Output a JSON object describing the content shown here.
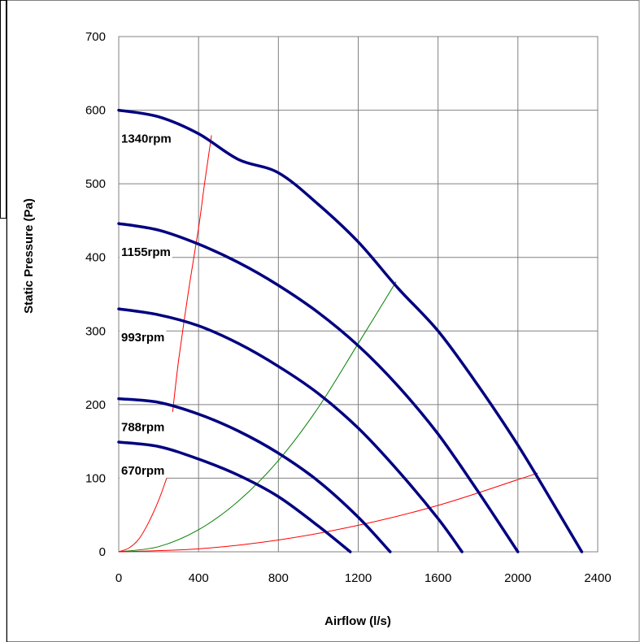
{
  "chart_data": {
    "type": "line",
    "title": "",
    "xlabel": "Airflow (l/s)",
    "ylabel": "Static Pressure (Pa)",
    "xlim": [
      0,
      2400
    ],
    "ylim": [
      0,
      700
    ],
    "xticks": [
      "0",
      "400",
      "800",
      "1200",
      "1600",
      "2000",
      "2400"
    ],
    "yticks": [
      "0",
      "100",
      "200",
      "300",
      "400",
      "500",
      "600",
      "700"
    ],
    "grid": true,
    "legend": "none",
    "colors": {
      "fan_curve": "#000080",
      "system_red": "#ff0000",
      "system_green": "#008000",
      "grid": "#808080"
    },
    "fan_curves": [
      {
        "name": "1340rpm",
        "x": [
          0,
          200,
          400,
          600,
          800,
          1000,
          1200,
          1400,
          1600,
          1800,
          2000,
          2200,
          2320
        ],
        "y": [
          600,
          591,
          568,
          533,
          515,
          472,
          421,
          358,
          300,
          226,
          145,
          55,
          0
        ]
      },
      {
        "name": "1155rpm",
        "x": [
          0,
          200,
          400,
          600,
          800,
          1000,
          1200,
          1400,
          1600,
          1800,
          2000
        ],
        "y": [
          446,
          437,
          418,
          393,
          362,
          325,
          280,
          225,
          160,
          82,
          0
        ]
      },
      {
        "name": "993rpm",
        "x": [
          0,
          200,
          400,
          600,
          800,
          1000,
          1200,
          1400,
          1600,
          1720
        ],
        "y": [
          330,
          322,
          307,
          283,
          252,
          215,
          168,
          110,
          45,
          0
        ]
      },
      {
        "name": "788rpm",
        "x": [
          0,
          200,
          400,
          600,
          800,
          1000,
          1200,
          1360
        ],
        "y": [
          208,
          203,
          187,
          164,
          134,
          96,
          47,
          0
        ]
      },
      {
        "name": "670rpm",
        "x": [
          0,
          200,
          400,
          600,
          800,
          1000,
          1160
        ],
        "y": [
          149,
          143,
          126,
          104,
          75,
          35,
          0
        ]
      }
    ],
    "system_curves": [
      {
        "color": "red",
        "x": [
          0,
          50,
          100,
          150,
          200,
          240
        ],
        "y": [
          0,
          5,
          17,
          40,
          70,
          100
        ]
      },
      {
        "color": "red",
        "x": [
          270,
          300,
          350,
          400,
          430,
          465
        ],
        "y": [
          190,
          260,
          355,
          440,
          500,
          566
        ]
      },
      {
        "color": "green",
        "x": [
          0,
          200,
          400,
          600,
          800,
          1000,
          1200,
          1390
        ],
        "y": [
          0,
          7,
          30,
          69,
          124,
          196,
          283,
          367
        ]
      },
      {
        "color": "red",
        "x": [
          0,
          400,
          800,
          1200,
          1600,
          2000,
          2100
        ],
        "y": [
          0,
          4,
          16,
          36,
          63,
          98,
          107
        ]
      }
    ]
  }
}
